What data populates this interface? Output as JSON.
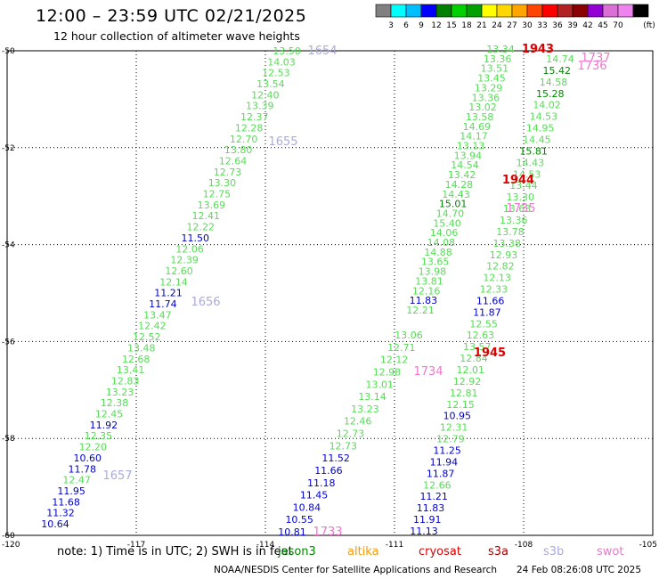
{
  "header": {
    "title": "12:00 – 23:59 UTC 02/21/2025",
    "subtitle": "12 hour collection of altimeter wave heights"
  },
  "colorbar": {
    "unit": "(ft)",
    "ticks": [
      "3",
      "6",
      "9",
      "12",
      "15",
      "18",
      "21",
      "24",
      "27",
      "30",
      "33",
      "36",
      "39",
      "42",
      "45",
      "70"
    ],
    "colors": [
      "#808080",
      "#00ffff",
      "#00bfff",
      "#0000ff",
      "#008000",
      "#00d000",
      "#00a000",
      "#ffff00",
      "#ffd700",
      "#ffa500",
      "#ff4500",
      "#ff0000",
      "#b22222",
      "#8b0000",
      "#9400d3",
      "#da70d6",
      "#ee82ee",
      "#000000"
    ]
  },
  "map": {
    "lon_range": [
      -120,
      -105
    ],
    "lat_range": [
      -60,
      -50
    ],
    "lon_ticks": [
      "-120",
      "-117",
      "-114",
      "-111",
      "-108",
      "-105"
    ],
    "lat_ticks": [
      "-50",
      "-52",
      "-54",
      "-56",
      "-58",
      "-60"
    ]
  },
  "colors": {
    "green": "#55dd55",
    "dkgreen": "#008800",
    "blue": "#0000cc",
    "red": "#dd0000",
    "lavender": "#aaaadd",
    "pink": "#ee77cc"
  },
  "tracks": {
    "left": [
      {
        "v": "13.50",
        "c": "green"
      },
      {
        "v": "14.03",
        "c": "green"
      },
      {
        "v": "12.53",
        "c": "green"
      },
      {
        "v": "13.54",
        "c": "green"
      },
      {
        "v": "12.40",
        "c": "green"
      },
      {
        "v": "13.39",
        "c": "green"
      },
      {
        "v": "12.37",
        "c": "green"
      },
      {
        "v": "12.28",
        "c": "green"
      },
      {
        "v": "12.70",
        "c": "green"
      },
      {
        "v": "13.80",
        "c": "green"
      },
      {
        "v": "12.64",
        "c": "green"
      },
      {
        "v": "12.73",
        "c": "green"
      },
      {
        "v": "13.30",
        "c": "green"
      },
      {
        "v": "12.75",
        "c": "green"
      },
      {
        "v": "13.69",
        "c": "green"
      },
      {
        "v": "12.41",
        "c": "green"
      },
      {
        "v": "12.22",
        "c": "green"
      },
      {
        "v": "11.50",
        "c": "blue"
      },
      {
        "v": "12.06",
        "c": "green"
      },
      {
        "v": "12.39",
        "c": "green"
      },
      {
        "v": "12.60",
        "c": "green"
      },
      {
        "v": "12.14",
        "c": "green"
      },
      {
        "v": "11.21",
        "c": "blue"
      },
      {
        "v": "11.74",
        "c": "blue"
      },
      {
        "v": "13.47",
        "c": "green"
      },
      {
        "v": "12.42",
        "c": "green"
      },
      {
        "v": "12.52",
        "c": "green"
      },
      {
        "v": "13.48",
        "c": "green"
      },
      {
        "v": "12.68",
        "c": "green"
      },
      {
        "v": "13.41",
        "c": "green"
      },
      {
        "v": "12.83",
        "c": "green"
      },
      {
        "v": "13.23",
        "c": "green"
      },
      {
        "v": "12.38",
        "c": "green"
      },
      {
        "v": "12.45",
        "c": "green"
      },
      {
        "v": "11.92",
        "c": "blue"
      },
      {
        "v": "12.35",
        "c": "green"
      },
      {
        "v": "12.20",
        "c": "green"
      },
      {
        "v": "10.60",
        "c": "blue"
      },
      {
        "v": "11.78",
        "c": "blue"
      },
      {
        "v": "12.47",
        "c": "green"
      },
      {
        "v": "11.95",
        "c": "blue"
      },
      {
        "v": "11.68",
        "c": "blue"
      },
      {
        "v": "11.32",
        "c": "blue"
      },
      {
        "v": "10.64",
        "c": "blue"
      }
    ],
    "middle": [
      {
        "v": "13.06",
        "c": "green"
      },
      {
        "v": "12.71",
        "c": "green"
      },
      {
        "v": "12.12",
        "c": "green"
      },
      {
        "v": "12.98",
        "c": "green"
      },
      {
        "v": "13.01",
        "c": "green"
      },
      {
        "v": "13.14",
        "c": "green"
      },
      {
        "v": "13.23",
        "c": "green"
      },
      {
        "v": "12.46",
        "c": "green"
      },
      {
        "v": "12.73",
        "c": "green"
      },
      {
        "v": "12.73",
        "c": "green"
      },
      {
        "v": "11.52",
        "c": "blue"
      },
      {
        "v": "11.66",
        "c": "blue"
      },
      {
        "v": "11.18",
        "c": "blue"
      },
      {
        "v": "11.45",
        "c": "blue"
      },
      {
        "v": "10.84",
        "c": "blue"
      },
      {
        "v": "10.55",
        "c": "blue"
      },
      {
        "v": "10.81",
        "c": "blue"
      }
    ],
    "right_a": [
      {
        "v": "13.34",
        "c": "green"
      },
      {
        "v": "13.36",
        "c": "green"
      },
      {
        "v": "13.51",
        "c": "green"
      },
      {
        "v": "13.45",
        "c": "green"
      },
      {
        "v": "13.29",
        "c": "green"
      },
      {
        "v": "13.36",
        "c": "green"
      },
      {
        "v": "13.02",
        "c": "green"
      },
      {
        "v": "13.58",
        "c": "green"
      },
      {
        "v": "14.69",
        "c": "green"
      },
      {
        "v": "14.17",
        "c": "green"
      },
      {
        "v": "13.13",
        "c": "green"
      },
      {
        "v": "13.94",
        "c": "green"
      },
      {
        "v": "14.54",
        "c": "green"
      },
      {
        "v": "13.42",
        "c": "green"
      },
      {
        "v": "14.28",
        "c": "green"
      },
      {
        "v": "14.43",
        "c": "green"
      },
      {
        "v": "15.01",
        "c": "dkgreen"
      },
      {
        "v": "14.70",
        "c": "green"
      },
      {
        "v": "15.40",
        "c": "green"
      },
      {
        "v": "14.06",
        "c": "green"
      },
      {
        "v": "14.08",
        "c": "green"
      },
      {
        "v": "14.88",
        "c": "green"
      },
      {
        "v": "13.65",
        "c": "green"
      },
      {
        "v": "13.98",
        "c": "green"
      },
      {
        "v": "13.81",
        "c": "green"
      },
      {
        "v": "12.16",
        "c": "green"
      },
      {
        "v": "11.83",
        "c": "blue"
      },
      {
        "v": "12.21",
        "c": "green"
      }
    ],
    "right_b": [
      {
        "v": "14.74",
        "c": "green"
      },
      {
        "v": "15.42",
        "c": "dkgreen"
      },
      {
        "v": "14.58",
        "c": "green"
      },
      {
        "v": "15.28",
        "c": "dkgreen"
      },
      {
        "v": "14.02",
        "c": "green"
      },
      {
        "v": "14.53",
        "c": "green"
      },
      {
        "v": "14.95",
        "c": "green"
      },
      {
        "v": "14.45",
        "c": "green"
      },
      {
        "v": "15.81",
        "c": "dkgreen"
      },
      {
        "v": "14.43",
        "c": "green"
      },
      {
        "v": "14.53",
        "c": "green"
      },
      {
        "v": "13.44",
        "c": "green"
      },
      {
        "v": "13.30",
        "c": "green"
      },
      {
        "v": "13.63",
        "c": "green"
      },
      {
        "v": "13.36",
        "c": "green"
      },
      {
        "v": "13.78",
        "c": "green"
      },
      {
        "v": "13.38",
        "c": "green"
      },
      {
        "v": "12.93",
        "c": "green"
      },
      {
        "v": "12.82",
        "c": "green"
      },
      {
        "v": "12.13",
        "c": "green"
      },
      {
        "v": "12.33",
        "c": "green"
      },
      {
        "v": "11.66",
        "c": "blue"
      },
      {
        "v": "11.87",
        "c": "blue"
      },
      {
        "v": "12.55",
        "c": "green"
      },
      {
        "v": "12.63",
        "c": "green"
      },
      {
        "v": "13.57",
        "c": "green"
      },
      {
        "v": "12.84",
        "c": "green"
      },
      {
        "v": "12.01",
        "c": "green"
      },
      {
        "v": "12.92",
        "c": "green"
      },
      {
        "v": "12.81",
        "c": "green"
      },
      {
        "v": "12.15",
        "c": "green"
      },
      {
        "v": "10.95",
        "c": "blue"
      },
      {
        "v": "12.31",
        "c": "green"
      },
      {
        "v": "12.79",
        "c": "green"
      },
      {
        "v": "11.25",
        "c": "blue"
      },
      {
        "v": "11.94",
        "c": "blue"
      },
      {
        "v": "11.87",
        "c": "blue"
      },
      {
        "v": "12.66",
        "c": "green"
      },
      {
        "v": "11.21",
        "c": "blue"
      },
      {
        "v": "11.83",
        "c": "blue"
      },
      {
        "v": "11.91",
        "c": "blue"
      },
      {
        "v": "11.13",
        "c": "blue"
      }
    ]
  },
  "time_labels": [
    {
      "t": "1654",
      "c": "lavender"
    },
    {
      "t": "1655",
      "c": "lavender"
    },
    {
      "t": "1656",
      "c": "lavender"
    },
    {
      "t": "1657",
      "c": "lavender"
    },
    {
      "t": "1733",
      "c": "pink"
    },
    {
      "t": "1734",
      "c": "pink"
    },
    {
      "t": "1735",
      "c": "pink"
    },
    {
      "t": "1736",
      "c": "pink"
    },
    {
      "t": "1737",
      "c": "pink"
    },
    {
      "t": "1943",
      "c": "red"
    },
    {
      "t": "1944",
      "c": "red"
    },
    {
      "t": "1945",
      "c": "red"
    }
  ],
  "legend": {
    "note": "note: 1) Time is in UTC; 2) SWH is in feet",
    "satellites": [
      {
        "name": "jason3",
        "color": "#008800"
      },
      {
        "name": "altika",
        "color": "#ff9900"
      },
      {
        "name": "cryosat",
        "color": "#dd0000"
      },
      {
        "name": "s3a",
        "color": "#aa0000"
      },
      {
        "name": "s3b",
        "color": "#aaaadd"
      },
      {
        "name": "swot",
        "color": "#ee77cc"
      }
    ]
  },
  "footer": {
    "org": "NOAA/NESDIS Center for Satellite Applications and Research",
    "timestamp": "24 Feb 08:26:08 UTC 2025"
  }
}
